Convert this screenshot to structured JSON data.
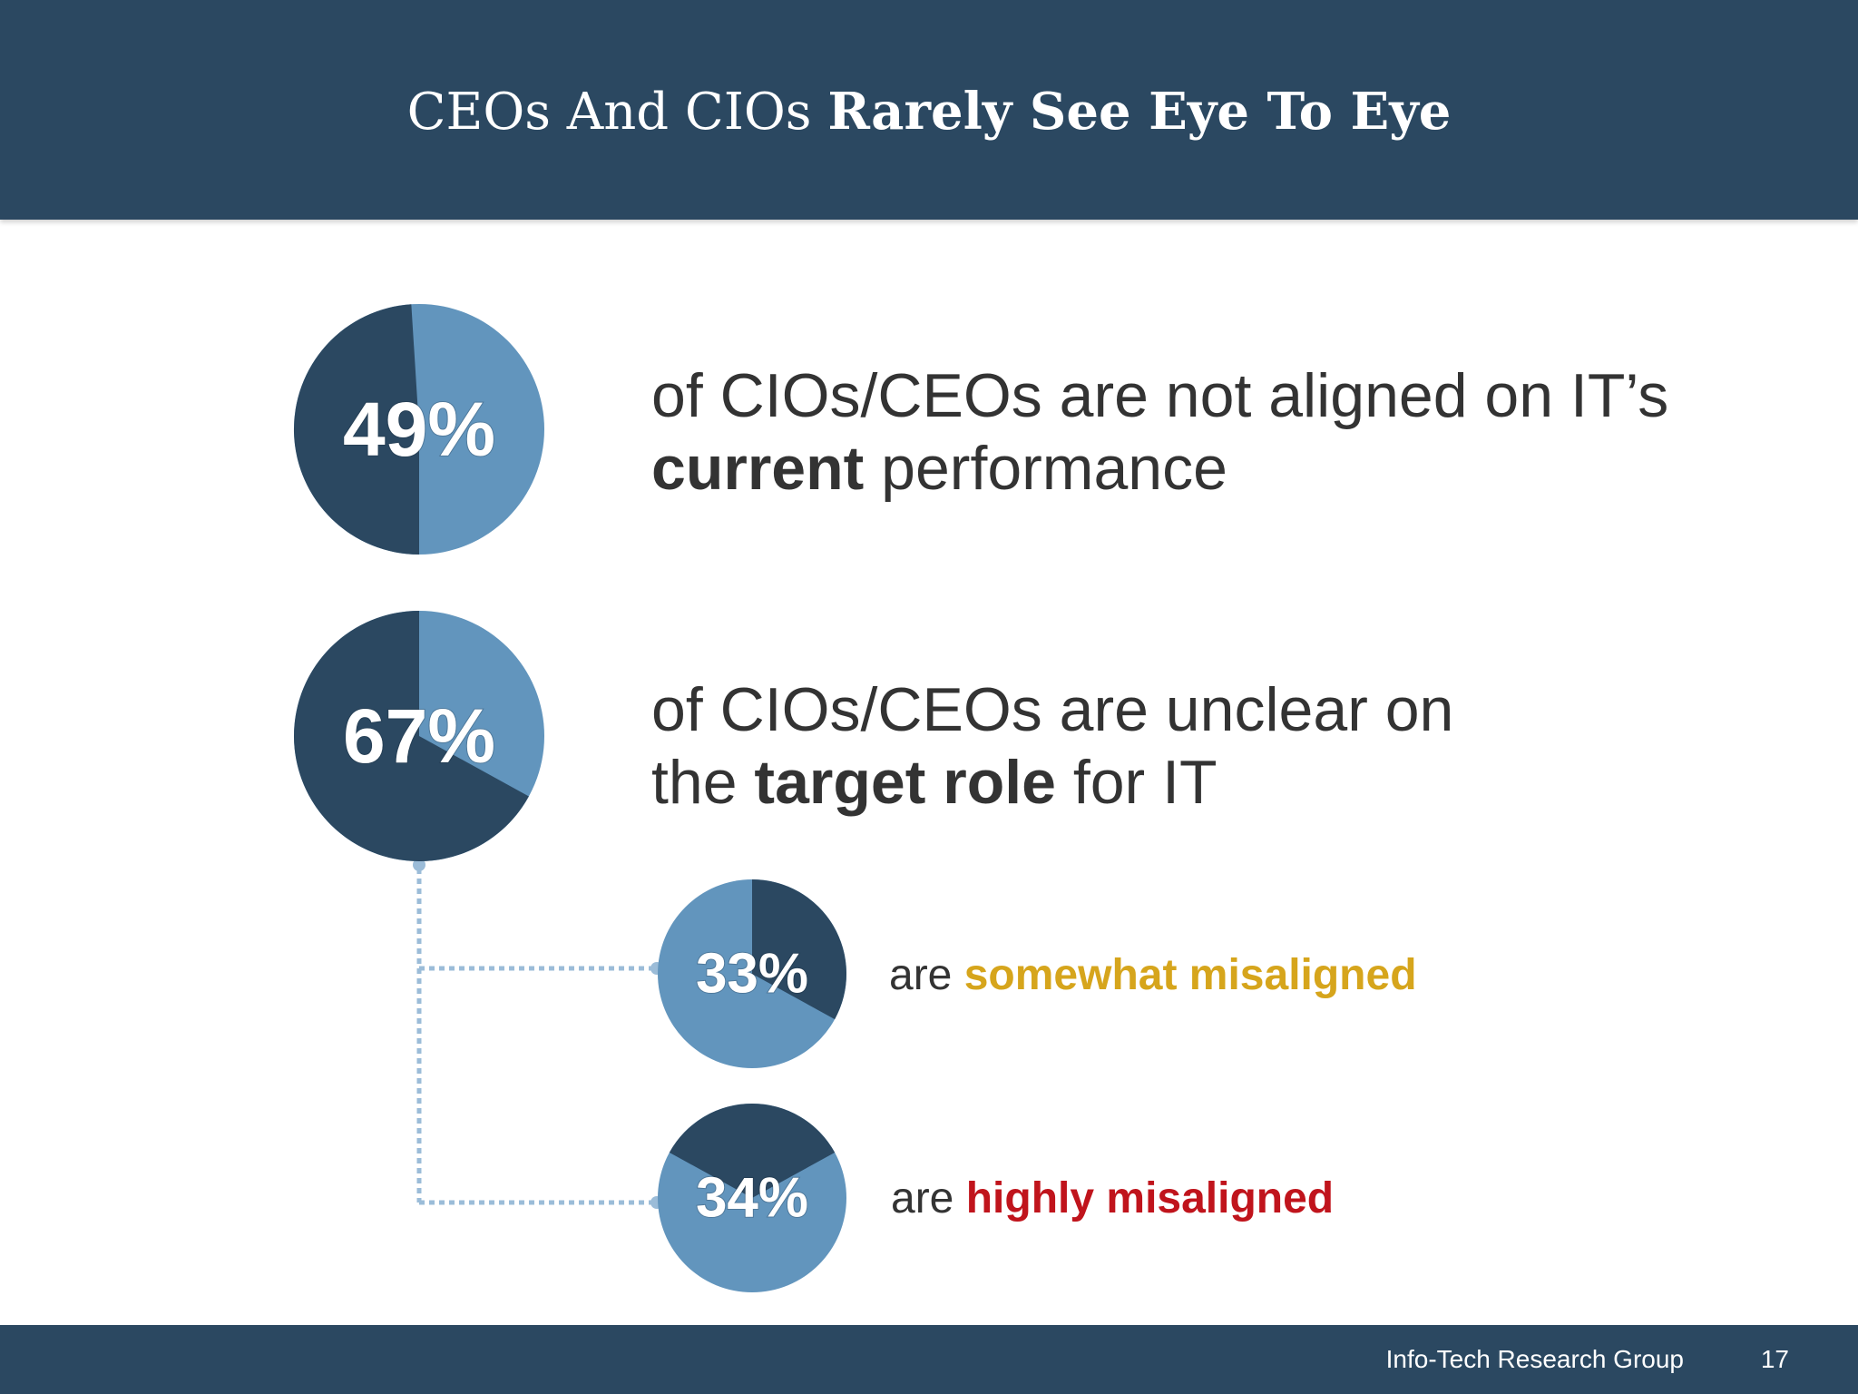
{
  "header": {
    "title_regular": "CEOs And CIOs ",
    "title_bold": "Rarely See Eye To Eye"
  },
  "stats": [
    {
      "line1": "of CIOs/CEOs are not aligned on IT’s",
      "line2_bold": "current",
      "line2_rest": " performance"
    },
    {
      "line1": "of CIOs/CEOs are unclear on",
      "line2_pre": "the ",
      "line2_bold": "target role",
      "line2_rest": " for IT"
    },
    {
      "prefix": "are ",
      "highlight": "somewhat misaligned"
    },
    {
      "prefix": "are ",
      "highlight": "highly misaligned"
    }
  ],
  "colors": {
    "dark": "#2b4861",
    "light": "#6295bd",
    "connector": "#9bbcd8",
    "somewhat": "#d6a51c",
    "highly": "#c0141c"
  },
  "chart_data": [
    {
      "type": "pie",
      "title": "",
      "label": "49%",
      "value": 49,
      "slices": [
        49,
        51
      ]
    },
    {
      "type": "pie",
      "title": "",
      "label": "67%",
      "value": 67,
      "slices": [
        67,
        33
      ]
    },
    {
      "type": "pie",
      "title": "",
      "label": "33%",
      "value": 33,
      "slices": [
        33,
        67
      ]
    },
    {
      "type": "pie",
      "title": "",
      "label": "34%",
      "value": 34,
      "slices": [
        34,
        66
      ]
    }
  ],
  "footer": {
    "org": "Info-Tech Research Group",
    "page": "17"
  }
}
